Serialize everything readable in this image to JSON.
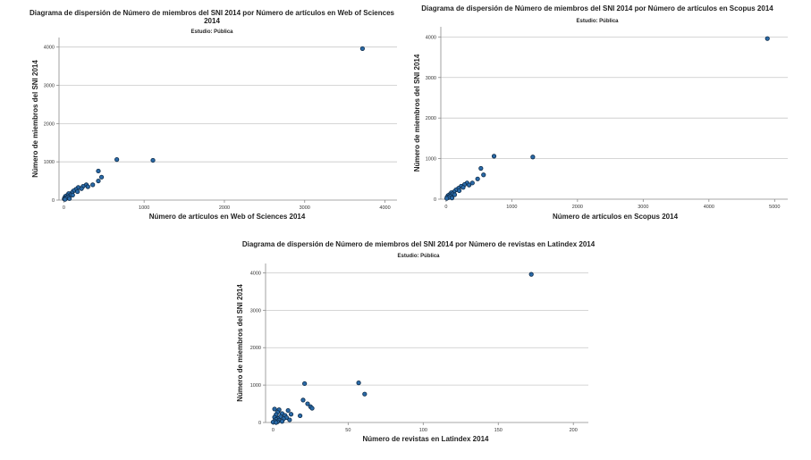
{
  "colors": {
    "marker_fill": "#2a6aa8",
    "marker_stroke": "#0d2a47",
    "gridline": "#c8c8c8"
  },
  "chart_data": [
    {
      "type": "scatter",
      "title": [
        "Diagrama de dispersión de Número de miembros del SNI 2014 por Número de artículos en Web of Sciences",
        "2014"
      ],
      "subtitle": "Estudio: Pública",
      "xlabel": "Número de artículos en Web of Sciences 2014",
      "ylabel": "Número de miembros del SNI 2014",
      "xlim": [
        -60,
        4150
      ],
      "ylim": [
        0,
        4250
      ],
      "xticks": [
        0,
        1000,
        2000,
        3000,
        4000
      ],
      "yticks": [
        0,
        1000,
        2000,
        3000,
        4000
      ],
      "grid": "horizontal",
      "points": [
        [
          3720,
          3960
        ],
        [
          660,
          1060
        ],
        [
          1110,
          1040
        ],
        [
          430,
          760
        ],
        [
          470,
          600
        ],
        [
          430,
          500
        ],
        [
          360,
          400
        ],
        [
          280,
          400
        ],
        [
          240,
          360
        ],
        [
          300,
          350
        ],
        [
          180,
          330
        ],
        [
          220,
          300
        ],
        [
          150,
          280
        ],
        [
          120,
          240
        ],
        [
          170,
          220
        ],
        [
          100,
          190
        ],
        [
          60,
          170
        ],
        [
          90,
          140
        ],
        [
          40,
          120
        ],
        [
          20,
          100
        ],
        [
          50,
          80
        ],
        [
          10,
          60
        ],
        [
          30,
          50
        ],
        [
          70,
          40
        ],
        [
          5,
          30
        ],
        [
          15,
          20
        ],
        [
          110,
          130
        ]
      ]
    },
    {
      "type": "scatter",
      "title": [
        "Diagrama de dispersión de Número de miembros del SNI 2014 por Número de artículos en Scopus 2014"
      ],
      "subtitle": "Estudio: Pública",
      "xlabel": "Número de artículos en Scopus 2014",
      "ylabel": "Número de miembros del SNI 2014",
      "xlim": [
        -80,
        5200
      ],
      "ylim": [
        0,
        4250
      ],
      "xticks": [
        0,
        1000,
        2000,
        3000,
        4000,
        5000
      ],
      "yticks": [
        0,
        1000,
        2000,
        3000,
        4000
      ],
      "grid": "horizontal",
      "points": [
        [
          4890,
          3960
        ],
        [
          730,
          1060
        ],
        [
          1320,
          1040
        ],
        [
          530,
          760
        ],
        [
          570,
          600
        ],
        [
          480,
          500
        ],
        [
          400,
          400
        ],
        [
          320,
          400
        ],
        [
          280,
          360
        ],
        [
          350,
          350
        ],
        [
          230,
          320
        ],
        [
          260,
          290
        ],
        [
          190,
          270
        ],
        [
          150,
          230
        ],
        [
          200,
          210
        ],
        [
          120,
          180
        ],
        [
          80,
          160
        ],
        [
          100,
          130
        ],
        [
          50,
          110
        ],
        [
          30,
          90
        ],
        [
          60,
          70
        ],
        [
          15,
          50
        ],
        [
          40,
          40
        ],
        [
          90,
          30
        ],
        [
          10,
          20
        ],
        [
          130,
          110
        ]
      ]
    },
    {
      "type": "scatter",
      "title": [
        "Diagrama de dispersión de Número de miembros del SNI 2014 por Número de revistas en Latindex 2014"
      ],
      "subtitle": "Estudio: Pública",
      "xlabel": "Número de revistas en Latindex 2014",
      "ylabel": "Número de miembros del SNI 2014",
      "xlim": [
        -5,
        210
      ],
      "ylim": [
        0,
        4250
      ],
      "xticks": [
        0,
        50,
        100,
        150,
        200
      ],
      "yticks": [
        0,
        1000,
        2000,
        3000,
        4000
      ],
      "grid": "horizontal",
      "points": [
        [
          172,
          3960
        ],
        [
          57,
          1060
        ],
        [
          21,
          1040
        ],
        [
          61,
          760
        ],
        [
          20,
          600
        ],
        [
          23,
          500
        ],
        [
          25,
          420
        ],
        [
          26,
          380
        ],
        [
          1,
          360
        ],
        [
          4,
          340
        ],
        [
          10,
          320
        ],
        [
          3,
          270
        ],
        [
          6,
          240
        ],
        [
          12,
          220
        ],
        [
          2,
          210
        ],
        [
          8,
          190
        ],
        [
          18,
          180
        ],
        [
          5,
          160
        ],
        [
          1,
          140
        ],
        [
          9,
          130
        ],
        [
          3,
          110
        ],
        [
          7,
          100
        ],
        [
          2,
          80
        ],
        [
          11,
          70
        ],
        [
          4,
          60
        ],
        [
          1,
          40
        ],
        [
          6,
          30
        ],
        [
          3,
          20
        ],
        [
          0,
          10
        ],
        [
          2,
          0
        ]
      ]
    }
  ]
}
